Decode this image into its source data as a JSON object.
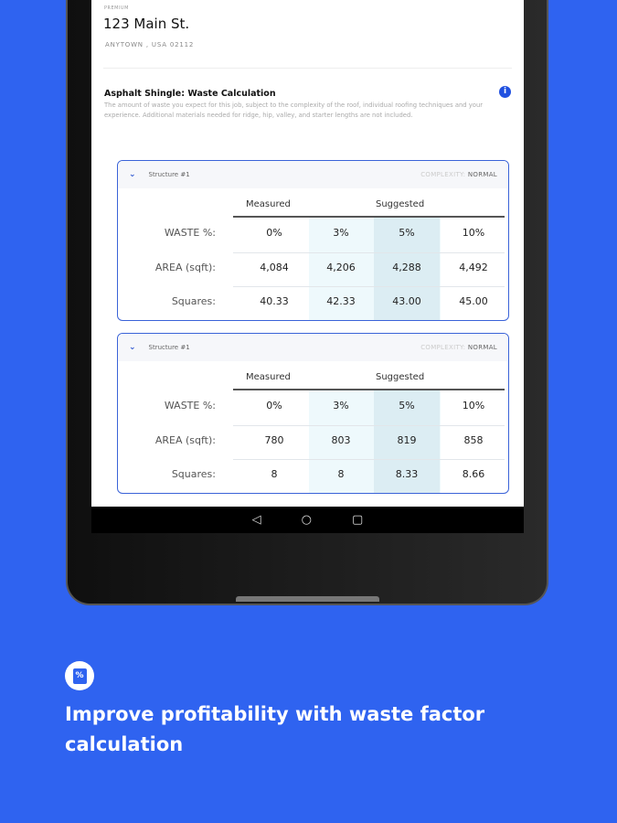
{
  "header": {
    "tier": "PREMIUM",
    "address": "123 Main St.",
    "city": "ANYTOWN , USA 02112"
  },
  "section": {
    "title": "Asphalt Shingle: Waste Calculation",
    "description": "The amount of waste you expect for this job, subject to the complexity of the roof, individual roofing techniques and your experience. Additional materials needed for ridge, hip, valley, and starter lengths are not included.",
    "info_icon": "info-icon"
  },
  "table_headers": {
    "measured": "Measured",
    "suggested": "Suggested"
  },
  "row_labels": [
    "WASTE %:",
    "AREA (sqft):",
    "Squares:"
  ],
  "structures": [
    {
      "name": "Structure #1",
      "complexity_label": "COMPLEXITY:",
      "complexity": "NORMAL",
      "rows": [
        [
          "0%",
          "3%",
          "5%",
          "10%"
        ],
        [
          "4,084",
          "4,206",
          "4,288",
          "4,492"
        ],
        [
          "40.33",
          "42.33",
          "43.00",
          "45.00"
        ]
      ]
    },
    {
      "name": "Structure #1",
      "complexity_label": "COMPLEXITY:",
      "complexity": "NORMAL",
      "rows": [
        [
          "0%",
          "3%",
          "5%",
          "10%"
        ],
        [
          "780",
          "803",
          "819",
          "858"
        ],
        [
          "8",
          "8",
          "8.33",
          "8.66"
        ]
      ]
    }
  ],
  "navbar": {
    "back": "◁",
    "home": "○",
    "recents": "▢"
  },
  "feature": {
    "icon": "waste-percent-icon",
    "icon_text": "%",
    "headline": "Improve profitability with waste factor calculation"
  },
  "colors": {
    "background": "#2f63f0",
    "accent": "#3a63d8"
  }
}
